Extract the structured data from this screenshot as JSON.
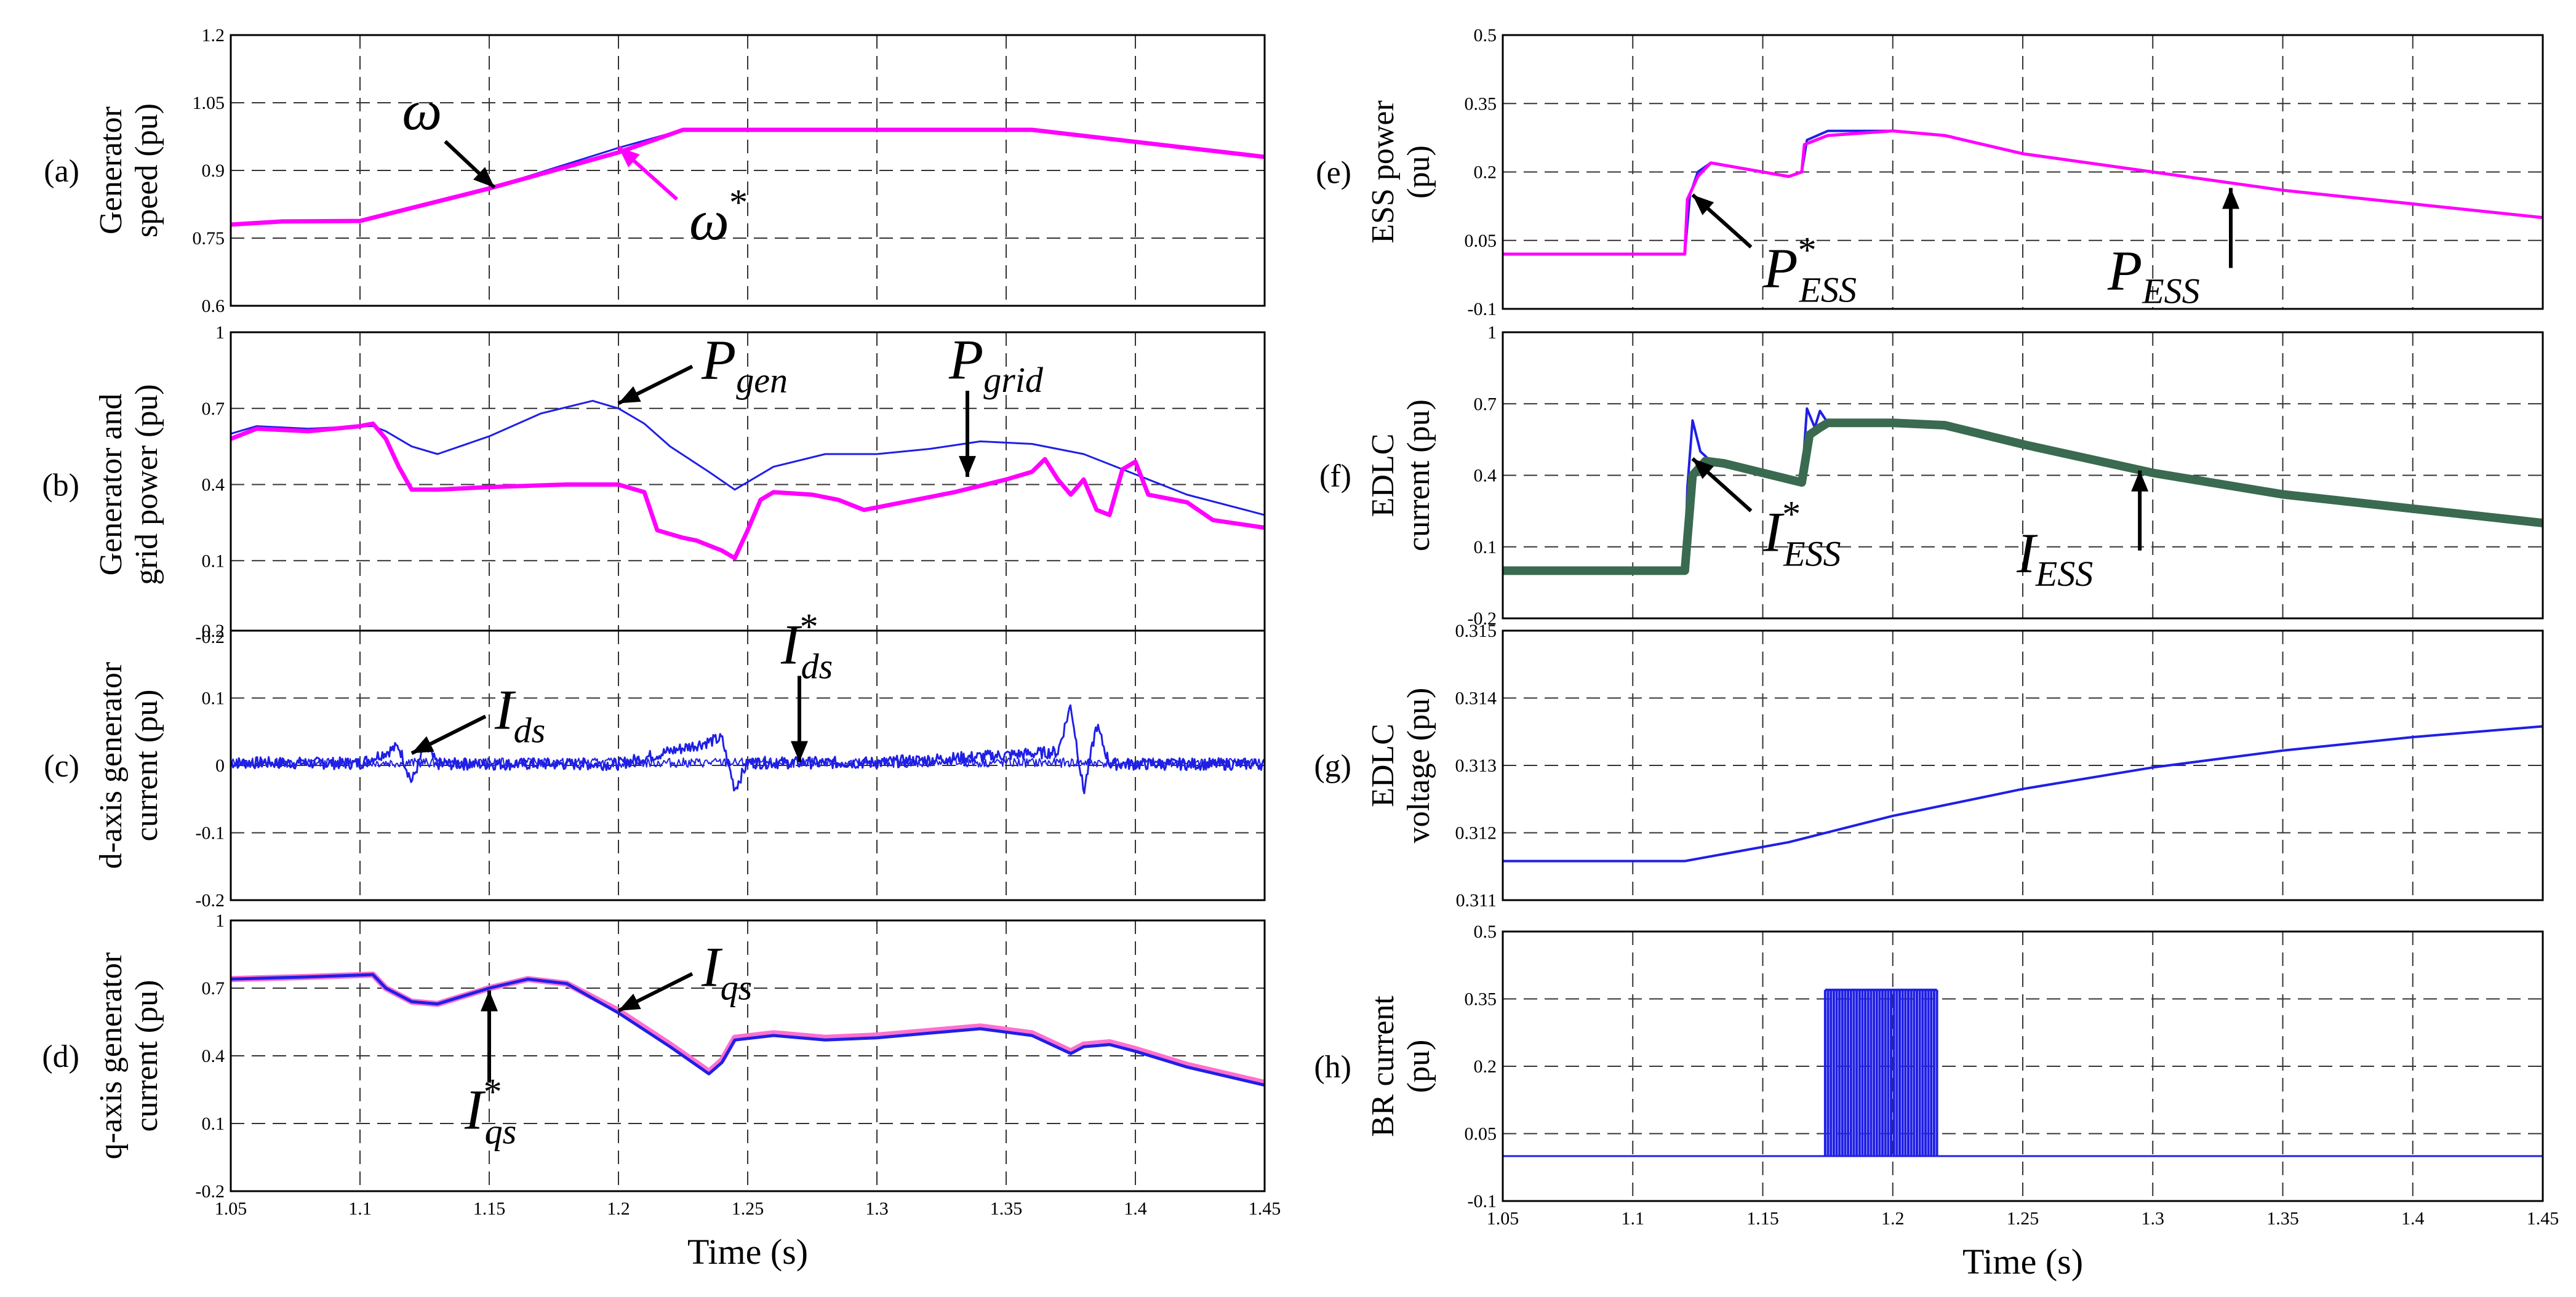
{
  "chart_data": [
    {
      "id": "a",
      "type": "line",
      "panel_label": "(a)",
      "ylabel": [
        "Generator",
        "speed (pu)"
      ],
      "xlabel": "",
      "xlim": [
        1.05,
        1.45
      ],
      "ylim": [
        0.6,
        1.2
      ],
      "x_ticks": [
        1.05,
        1.1,
        1.15,
        1.2,
        1.25,
        1.3,
        1.35,
        1.4,
        1.45
      ],
      "y_ticks": [
        0.6,
        0.75,
        0.9,
        1.05,
        1.2
      ],
      "y_tick_labels": [
        "0.6",
        "0.75",
        "0.9",
        "1.05",
        "1.2"
      ],
      "grid": true,
      "show_x_tick_labels": false,
      "series": [
        {
          "color": "#1f1fe6",
          "width": 3,
          "x": [
            1.05,
            1.07,
            1.1,
            1.15,
            1.2,
            1.225,
            1.3,
            1.36,
            1.45
          ],
          "y": [
            0.78,
            0.787,
            0.788,
            0.86,
            0.95,
            0.99,
            0.99,
            0.99,
            0.93
          ]
        },
        {
          "color": "#ff00ff",
          "width": 7,
          "x": [
            1.05,
            1.07,
            1.1,
            1.15,
            1.2,
            1.225,
            1.3,
            1.36,
            1.45
          ],
          "y": [
            0.78,
            0.787,
            0.788,
            0.86,
            0.94,
            0.99,
            0.99,
            0.99,
            0.93
          ]
        }
      ],
      "annotations": [
        {
          "main": "ω",
          "sub": "",
          "star": false,
          "data_x": 1.152,
          "data_y": 0.862,
          "arrow_style": "black",
          "pos": "upper-left"
        },
        {
          "main": "ω",
          "sub": "",
          "star": true,
          "data_x": 1.2,
          "data_y": 0.952,
          "arrow_style": "magenta",
          "pos": "lower-right"
        }
      ]
    },
    {
      "id": "b",
      "type": "line",
      "panel_label": "(b)",
      "ylabel": [
        "Generator and",
        "grid power (pu)"
      ],
      "xlabel": "",
      "xlim": [
        1.05,
        1.45
      ],
      "ylim": [
        -0.2,
        1.0
      ],
      "x_ticks": [
        1.05,
        1.1,
        1.15,
        1.2,
        1.25,
        1.3,
        1.35,
        1.4,
        1.45
      ],
      "y_ticks": [
        -0.2,
        0.1,
        0.4,
        0.7,
        1.0
      ],
      "y_tick_labels": [
        "-0.2",
        "0.1",
        "0.4",
        "0.7",
        "1"
      ],
      "grid": true,
      "show_x_tick_labels": false,
      "series": [
        {
          "color": "#1f1fe6",
          "width": 3,
          "x": [
            1.05,
            1.06,
            1.08,
            1.1,
            1.105,
            1.11,
            1.12,
            1.13,
            1.15,
            1.17,
            1.19,
            1.2,
            1.21,
            1.22,
            1.235,
            1.245,
            1.26,
            1.28,
            1.3,
            1.32,
            1.34,
            1.36,
            1.38,
            1.4,
            1.42,
            1.45
          ],
          "y": [
            0.6,
            0.63,
            0.62,
            0.63,
            0.63,
            0.61,
            0.55,
            0.52,
            0.59,
            0.68,
            0.73,
            0.7,
            0.64,
            0.55,
            0.45,
            0.38,
            0.47,
            0.52,
            0.52,
            0.54,
            0.57,
            0.56,
            0.52,
            0.44,
            0.36,
            0.28
          ]
        },
        {
          "color": "#ff00ff",
          "width": 7,
          "x": [
            1.05,
            1.06,
            1.08,
            1.1,
            1.105,
            1.11,
            1.115,
            1.12,
            1.13,
            1.15,
            1.18,
            1.2,
            1.21,
            1.215,
            1.225,
            1.23,
            1.24,
            1.245,
            1.25,
            1.255,
            1.26,
            1.275,
            1.285,
            1.295,
            1.31,
            1.33,
            1.35,
            1.36,
            1.365,
            1.37,
            1.375,
            1.38,
            1.385,
            1.39,
            1.395,
            1.4,
            1.405,
            1.41,
            1.42,
            1.43,
            1.45
          ],
          "y": [
            0.58,
            0.62,
            0.61,
            0.63,
            0.64,
            0.58,
            0.47,
            0.38,
            0.38,
            0.39,
            0.4,
            0.4,
            0.37,
            0.22,
            0.19,
            0.18,
            0.14,
            0.11,
            0.22,
            0.34,
            0.37,
            0.36,
            0.34,
            0.3,
            0.33,
            0.37,
            0.42,
            0.45,
            0.5,
            0.42,
            0.36,
            0.42,
            0.3,
            0.28,
            0.46,
            0.49,
            0.36,
            0.35,
            0.33,
            0.26,
            0.23
          ]
        }
      ],
      "annotations": [
        {
          "main": "P",
          "sub": "gen",
          "star": false,
          "data_x": 1.2,
          "data_y": 0.72,
          "arrow_style": "black",
          "pos": "upper-right"
        },
        {
          "main": "P",
          "sub": "grid",
          "star": false,
          "data_x": 1.335,
          "data_y": 0.43,
          "arrow_style": "black",
          "pos": "above"
        }
      ]
    },
    {
      "id": "c",
      "type": "line",
      "panel_label": "(c)",
      "ylabel": [
        "d-axis generator",
        "current (pu)"
      ],
      "xlabel": "",
      "xlim": [
        1.05,
        1.45
      ],
      "ylim": [
        -0.2,
        0.2
      ],
      "x_ticks": [
        1.05,
        1.1,
        1.15,
        1.2,
        1.25,
        1.3,
        1.35,
        1.4,
        1.45
      ],
      "y_ticks": [
        -0.2,
        -0.1,
        0,
        0.1,
        0.2
      ],
      "y_tick_labels": [
        "-0.2",
        "-0.1",
        "0",
        "0.1",
        "0.2"
      ],
      "grid": true,
      "show_x_tick_labels": false,
      "series": [
        {
          "color": "#1f1fe6",
          "width": 3,
          "noise": 0.009,
          "seed": 7,
          "x": [
            1.05,
            1.1,
            1.115,
            1.12,
            1.125,
            1.13,
            1.2,
            1.24,
            1.245,
            1.25,
            1.3,
            1.37,
            1.375,
            1.38,
            1.385,
            1.39,
            1.45
          ],
          "y": [
            0.004,
            0.003,
            0.028,
            -0.025,
            0.028,
            0.002,
            0.002,
            0.04,
            -0.035,
            0.004,
            0.004,
            0.02,
            0.09,
            -0.04,
            0.06,
            0.002,
            0.002
          ]
        },
        {
          "color": "#1f1fe6",
          "width": 2,
          "noise": 0.007,
          "seed": 13,
          "x": [
            1.05,
            1.45
          ],
          "y": [
            0.004,
            0.004
          ]
        }
      ],
      "annotations": [
        {
          "main": "I",
          "sub": "ds",
          "star": false,
          "data_x": 1.12,
          "data_y": 0.018,
          "arrow_style": "black",
          "pos": "upper-right"
        },
        {
          "main": "I",
          "sub": "ds",
          "star": true,
          "data_x": 1.27,
          "data_y": 0.005,
          "arrow_style": "black",
          "pos": "above"
        }
      ]
    },
    {
      "id": "d",
      "type": "line",
      "panel_label": "(d)",
      "ylabel": [
        "q-axis generator",
        "current (pu)"
      ],
      "xlabel": "Time (s)",
      "xlim": [
        1.05,
        1.45
      ],
      "ylim": [
        -0.2,
        1.0
      ],
      "x_ticks": [
        1.05,
        1.1,
        1.15,
        1.2,
        1.25,
        1.3,
        1.35,
        1.4,
        1.45
      ],
      "y_ticks": [
        -0.2,
        0.1,
        0.4,
        0.7,
        1.0
      ],
      "y_tick_labels": [
        "-0.2",
        "0.1",
        "0.4",
        "0.7",
        "1"
      ],
      "grid": true,
      "show_x_tick_labels": true,
      "series": [
        {
          "color": "#ff70d0",
          "width": 10,
          "x": [
            1.05,
            1.08,
            1.105,
            1.11,
            1.12,
            1.13,
            1.15,
            1.165,
            1.18,
            1.2,
            1.22,
            1.235,
            1.24,
            1.245,
            1.26,
            1.28,
            1.3,
            1.32,
            1.34,
            1.36,
            1.375,
            1.38,
            1.39,
            1.4,
            1.42,
            1.45
          ],
          "y": [
            0.74,
            0.75,
            0.76,
            0.7,
            0.64,
            0.63,
            0.7,
            0.74,
            0.72,
            0.6,
            0.45,
            0.33,
            0.38,
            0.48,
            0.5,
            0.48,
            0.49,
            0.51,
            0.53,
            0.5,
            0.42,
            0.45,
            0.46,
            0.43,
            0.36,
            0.28
          ]
        },
        {
          "color": "#1f1fe6",
          "width": 5,
          "x": [
            1.05,
            1.08,
            1.105,
            1.11,
            1.12,
            1.13,
            1.15,
            1.165,
            1.18,
            1.2,
            1.22,
            1.235,
            1.24,
            1.245,
            1.26,
            1.28,
            1.3,
            1.32,
            1.34,
            1.36,
            1.375,
            1.38,
            1.39,
            1.4,
            1.42,
            1.45
          ],
          "y": [
            0.74,
            0.75,
            0.76,
            0.7,
            0.64,
            0.63,
            0.7,
            0.74,
            0.72,
            0.59,
            0.44,
            0.32,
            0.37,
            0.47,
            0.49,
            0.47,
            0.48,
            0.5,
            0.52,
            0.49,
            0.41,
            0.44,
            0.45,
            0.42,
            0.35,
            0.27
          ]
        }
      ],
      "annotations": [
        {
          "main": "I",
          "sub": "qs",
          "star": false,
          "data_x": 1.2,
          "data_y": 0.6,
          "arrow_style": "black",
          "pos": "upper-right"
        },
        {
          "main": "I",
          "sub": "qs",
          "star": true,
          "data_x": 1.15,
          "data_y": 0.69,
          "arrow_style": "black",
          "pos": "below"
        }
      ]
    },
    {
      "id": "e",
      "type": "line",
      "panel_label": "(e)",
      "ylabel": [
        "ESS power",
        "(pu)"
      ],
      "xlabel": "",
      "xlim": [
        1.05,
        1.45
      ],
      "ylim": [
        -0.1,
        0.5
      ],
      "x_ticks": [
        1.05,
        1.1,
        1.15,
        1.2,
        1.25,
        1.3,
        1.35,
        1.4,
        1.45
      ],
      "y_ticks": [
        -0.1,
        0.05,
        0.2,
        0.35,
        0.5
      ],
      "y_tick_labels": [
        "-0.1",
        "0.05",
        "0.2",
        "0.35",
        "0.5"
      ],
      "grid": true,
      "show_x_tick_labels": false,
      "series": [
        {
          "color": "#1f1fe6",
          "width": 4,
          "x": [
            1.05,
            1.1,
            1.12,
            1.122,
            1.125,
            1.13,
            1.14,
            1.16,
            1.165,
            1.167,
            1.175,
            1.2,
            1.22,
            1.25,
            1.3,
            1.35,
            1.4,
            1.45
          ],
          "y": [
            0.02,
            0.02,
            0.02,
            0.15,
            0.2,
            0.22,
            0.21,
            0.19,
            0.2,
            0.27,
            0.29,
            0.29,
            0.28,
            0.24,
            0.2,
            0.16,
            0.13,
            0.1
          ]
        },
        {
          "color": "#ff00ff",
          "width": 5,
          "x": [
            1.05,
            1.1,
            1.12,
            1.121,
            1.125,
            1.13,
            1.14,
            1.16,
            1.165,
            1.166,
            1.175,
            1.2,
            1.22,
            1.25,
            1.3,
            1.35,
            1.4,
            1.45
          ],
          "y": [
            0.02,
            0.02,
            0.02,
            0.14,
            0.19,
            0.22,
            0.21,
            0.19,
            0.2,
            0.26,
            0.28,
            0.29,
            0.28,
            0.24,
            0.2,
            0.16,
            0.13,
            0.1
          ]
        }
      ],
      "annotations": [
        {
          "main": "P",
          "sub": "ESS",
          "star": true,
          "data_x": 1.123,
          "data_y": 0.15,
          "arrow_style": "black",
          "pos": "lower-right"
        },
        {
          "main": "P",
          "sub": "ESS",
          "star": false,
          "data_x": 1.33,
          "data_y": 0.165,
          "arrow_style": "black",
          "pos": "below-left"
        }
      ]
    },
    {
      "id": "f",
      "type": "line",
      "panel_label": "(f)",
      "ylabel": [
        "EDLC",
        "current (pu)"
      ],
      "xlabel": "",
      "xlim": [
        1.05,
        1.45
      ],
      "ylim": [
        -0.2,
        1.0
      ],
      "x_ticks": [
        1.05,
        1.1,
        1.15,
        1.2,
        1.25,
        1.3,
        1.35,
        1.4,
        1.45
      ],
      "y_ticks": [
        -0.2,
        0.1,
        0.4,
        0.7,
        1.0
      ],
      "y_tick_labels": [
        "-0.2",
        "0.1",
        "0.4",
        "0.7",
        "1"
      ],
      "grid": true,
      "show_x_tick_labels": false,
      "series": [
        {
          "color": "#1f1fe6",
          "width": 4,
          "x": [
            1.05,
            1.12,
            1.121,
            1.123,
            1.126,
            1.13,
            1.135,
            1.165,
            1.167,
            1.17,
            1.172,
            1.175,
            1.2,
            1.22,
            1.25,
            1.3,
            1.35,
            1.4,
            1.45
          ],
          "y": [
            0.0,
            0.0,
            0.35,
            0.63,
            0.5,
            0.46,
            0.45,
            0.37,
            0.68,
            0.6,
            0.67,
            0.62,
            0.62,
            0.61,
            0.53,
            0.41,
            0.32,
            0.26,
            0.2
          ]
        },
        {
          "color": "#3a6a50",
          "width": 14,
          "x": [
            1.05,
            1.12,
            1.123,
            1.128,
            1.135,
            1.165,
            1.168,
            1.172,
            1.175,
            1.2,
            1.22,
            1.25,
            1.3,
            1.35,
            1.4,
            1.45
          ],
          "y": [
            0.0,
            0.0,
            0.4,
            0.46,
            0.45,
            0.37,
            0.57,
            0.6,
            0.62,
            0.62,
            0.61,
            0.53,
            0.41,
            0.32,
            0.26,
            0.2
          ]
        }
      ],
      "annotations": [
        {
          "main": "I",
          "sub": "ESS",
          "star": true,
          "data_x": 1.123,
          "data_y": 0.47,
          "arrow_style": "black",
          "pos": "lower-right"
        },
        {
          "main": "I",
          "sub": "ESS",
          "star": false,
          "data_x": 1.295,
          "data_y": 0.42,
          "arrow_style": "black",
          "pos": "below-left"
        }
      ]
    },
    {
      "id": "g",
      "type": "line",
      "panel_label": "(g)",
      "ylabel": [
        "EDLC",
        "voltage (pu)"
      ],
      "xlabel": "",
      "xlim": [
        1.05,
        1.45
      ],
      "ylim": [
        0.311,
        0.315
      ],
      "x_ticks": [
        1.05,
        1.1,
        1.15,
        1.2,
        1.25,
        1.3,
        1.35,
        1.4,
        1.45
      ],
      "y_ticks": [
        0.311,
        0.312,
        0.313,
        0.314,
        0.315
      ],
      "y_tick_labels": [
        "0.311",
        "0.312",
        "0.313",
        "0.314",
        "0.315"
      ],
      "grid": true,
      "show_x_tick_labels": false,
      "series": [
        {
          "color": "#1f1fe6",
          "width": 4,
          "x": [
            1.05,
            1.12,
            1.16,
            1.2,
            1.25,
            1.3,
            1.35,
            1.4,
            1.45
          ],
          "y": [
            0.31158,
            0.31158,
            0.31186,
            0.31225,
            0.31265,
            0.31297,
            0.31322,
            0.31342,
            0.31358
          ]
        }
      ],
      "annotations": []
    },
    {
      "id": "h",
      "type": "line",
      "panel_label": "(h)",
      "ylabel": [
        "BR current",
        "(pu)"
      ],
      "xlabel": "Time (s)",
      "xlim": [
        1.05,
        1.45
      ],
      "ylim": [
        -0.1,
        0.5
      ],
      "x_ticks": [
        1.05,
        1.1,
        1.15,
        1.2,
        1.25,
        1.3,
        1.35,
        1.4,
        1.45
      ],
      "y_ticks": [
        -0.1,
        0.05,
        0.2,
        0.35,
        0.5
      ],
      "y_tick_labels": [
        "-0.1",
        "0.05",
        "0.2",
        "0.35",
        "0.5"
      ],
      "grid": true,
      "show_x_tick_labels": true,
      "series": [
        {
          "color": "#1f1fe6",
          "width": 3,
          "x": [
            1.05,
            1.45
          ],
          "y": [
            0.0,
            0.0
          ]
        }
      ],
      "pulses": {
        "color": "#1f1fe6",
        "x_start": 1.174,
        "x_end": 1.217,
        "count": 40,
        "height": 0.37
      },
      "annotations": []
    }
  ]
}
